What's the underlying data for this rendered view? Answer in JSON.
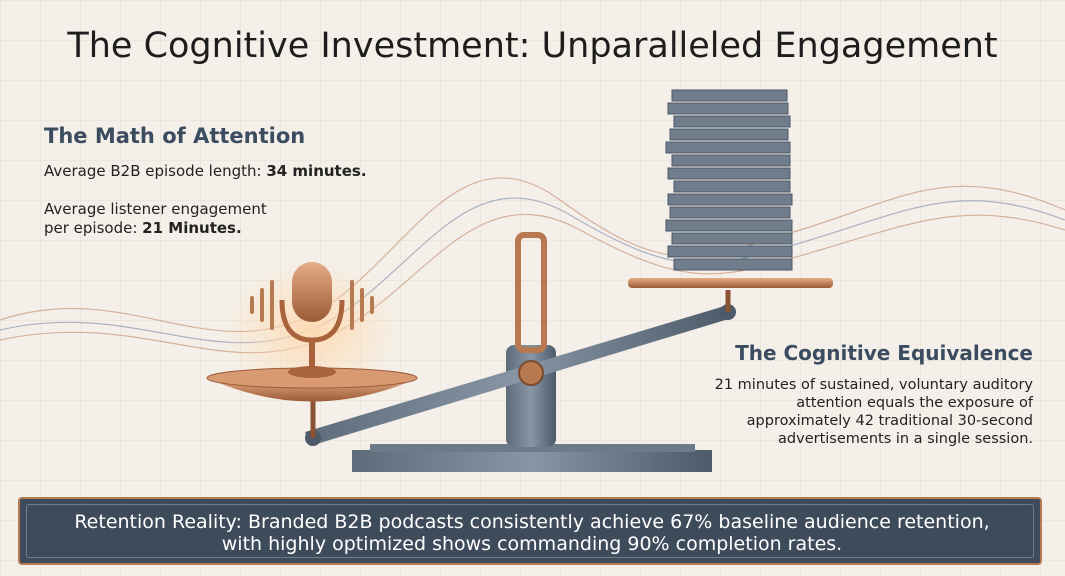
{
  "header": {
    "title": "The Cognitive Investment: Unparalleled Engagement"
  },
  "left_panel": {
    "heading": "The Math of Attention",
    "items": [
      {
        "text": "Average B2B episode length: ",
        "emphasis": "34 minutes."
      },
      {
        "text_lines": [
          "Average listener engagement",
          "per episode: "
        ],
        "emphasis": "21 Minutes."
      }
    ]
  },
  "right_panel": {
    "heading": "The Cognitive Equivalence",
    "lines": [
      "21 minutes of sustained, voluntary auditory",
      "attention equals the exposure of",
      "approximately 42 traditional 30-second",
      "advertisements in a single session."
    ]
  },
  "footer": {
    "lines": [
      "Retention Reality: Branded B2B podcasts consistently achieve 67% baseline audience retention,",
      "with highly optimized shows commanding 90% completion rates."
    ]
  }
}
